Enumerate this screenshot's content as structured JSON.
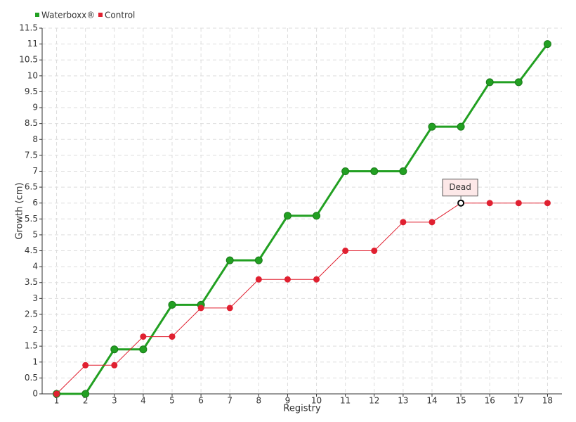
{
  "chart_data": {
    "type": "line",
    "x_label": "Registry",
    "y_label": "Growth (cm)",
    "categories": [
      "1",
      "2",
      "3",
      "4",
      "5",
      "6",
      "7",
      "8",
      "9",
      "10",
      "11",
      "12",
      "13",
      "14",
      "15",
      "16",
      "17",
      "18"
    ],
    "series": [
      {
        "name": "Waterboxx®",
        "color": "#22a022",
        "values": [
          0,
          0,
          1.4,
          1.4,
          2.8,
          2.8,
          4.2,
          4.2,
          5.6,
          5.6,
          7,
          7,
          7,
          8.4,
          8.4,
          9.8,
          9.8,
          11
        ]
      },
      {
        "name": "Control",
        "color": "#e02030",
        "values": [
          0,
          0.9,
          0.9,
          1.8,
          1.8,
          2.7,
          2.7,
          3.6,
          3.6,
          3.6,
          4.5,
          4.5,
          5.4,
          5.4,
          6,
          6,
          6,
          6
        ]
      }
    ],
    "annotations": [
      {
        "text": "Dead",
        "series": "Control",
        "category": "15"
      }
    ],
    "ylim": [
      0,
      11.5
    ],
    "yticks": [
      0,
      0.5,
      1,
      1.5,
      2,
      2.5,
      3,
      3.5,
      4,
      4.5,
      5,
      5.5,
      6,
      6.5,
      7,
      7.5,
      8,
      8.5,
      9,
      9.5,
      10,
      10.5,
      11,
      11.5
    ],
    "grid": true,
    "legend": "top-left"
  }
}
